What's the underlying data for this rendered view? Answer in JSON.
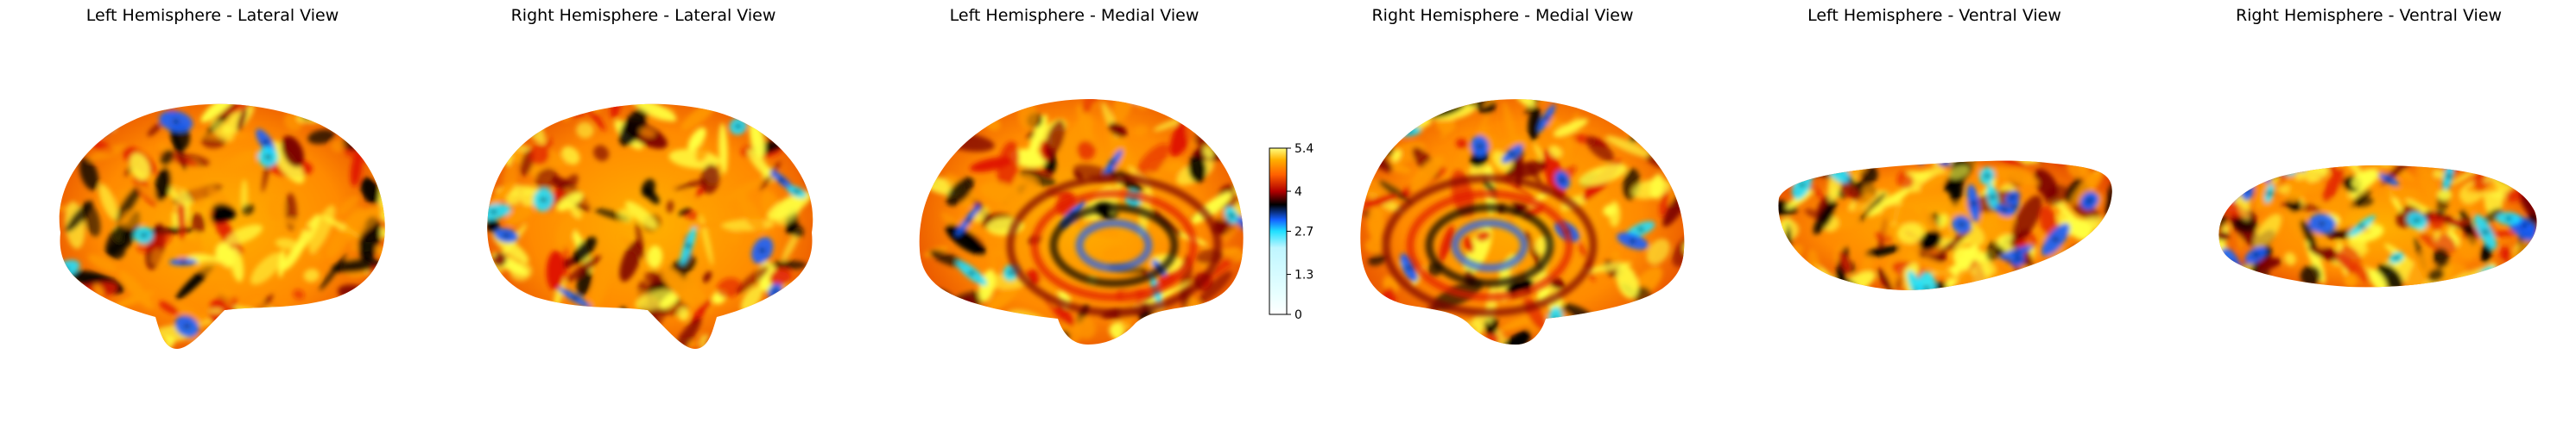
{
  "panels": [
    {
      "title": "Left Hemisphere - Lateral View"
    },
    {
      "title": "Right Hemisphere - Lateral View"
    },
    {
      "title": "Left Hemisphere - Medial View"
    },
    {
      "title": "Right Hemisphere - Medial View"
    },
    {
      "title": "Left Hemisphere - Ventral View"
    },
    {
      "title": "Right Hemisphere - Ventral View"
    }
  ],
  "colorbar": {
    "min": 0,
    "max": 5.4,
    "ticks": [
      "0",
      "1.3",
      "2.7",
      "4",
      "5.4"
    ],
    "colormap": "cold_hot (white-cyan-blue-black-red-orange-yellow)"
  },
  "colors": {
    "yellow": "#ffff40",
    "orange": "#ff9a00",
    "red": "#e01800",
    "darkred": "#7a0000",
    "black": "#000000",
    "blue": "#1460ff",
    "cyan": "#20e0ff"
  }
}
